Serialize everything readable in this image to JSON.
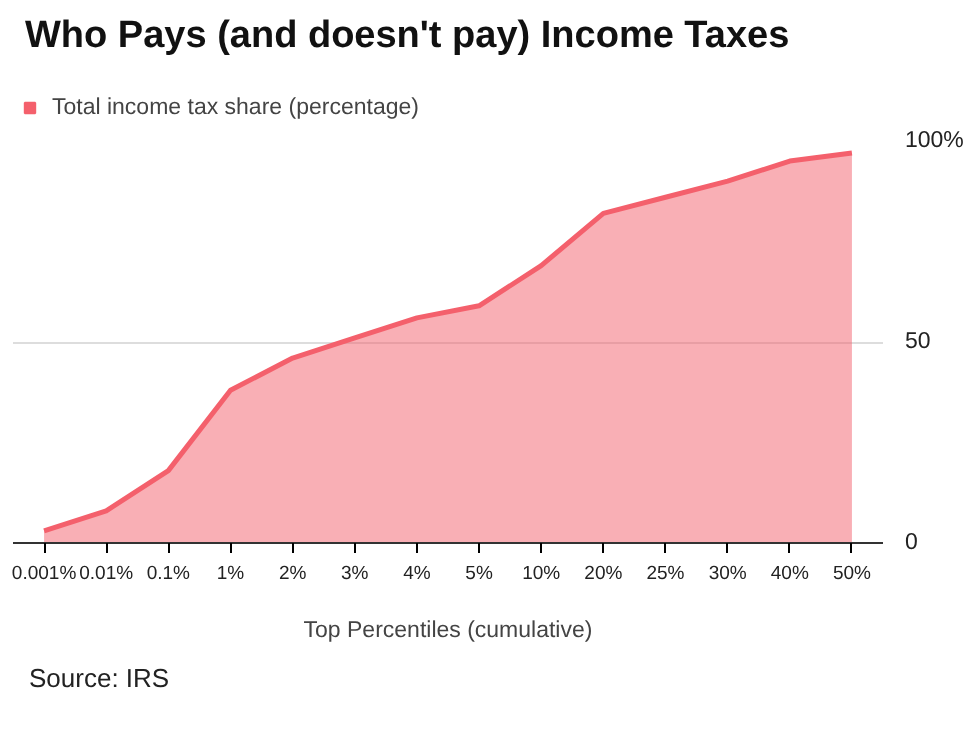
{
  "chart_data": {
    "type": "area",
    "title": "Who Pays (and doesn't pay) Income Taxes",
    "xlabel": "Top Percentiles (cumulative)",
    "annotations": [
      "Source: IRS"
    ],
    "categories": [
      "0.001%",
      "0.01%",
      "0.1%",
      "1%",
      "2%",
      "3%",
      "4%",
      "5%",
      "10%",
      "20%",
      "25%",
      "30%",
      "40%",
      "50%"
    ],
    "series": [
      {
        "name": "Total income tax share (percentage)",
        "color": "#f4606c",
        "values": [
          3,
          8,
          18,
          38,
          46,
          51,
          56,
          59,
          69,
          82,
          86,
          90,
          95,
          97
        ]
      }
    ],
    "ylim": [
      0,
      100
    ],
    "yticks": [
      0,
      50,
      {
        "value": 100,
        "label": "100%"
      }
    ],
    "grid": "y",
    "legend": "top left"
  }
}
